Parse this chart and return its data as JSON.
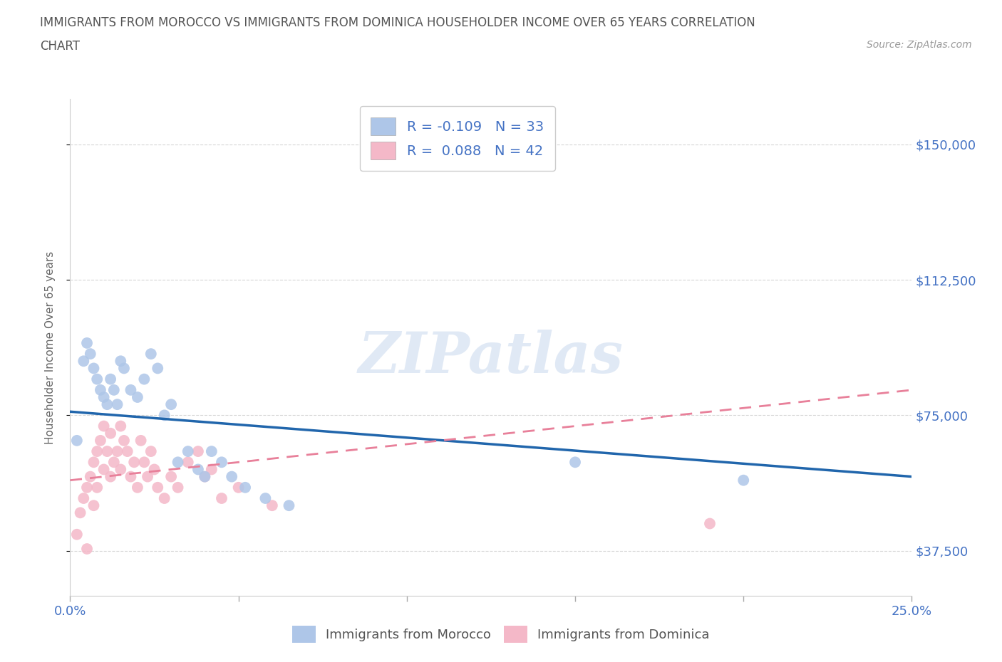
{
  "title_line1": "IMMIGRANTS FROM MOROCCO VS IMMIGRANTS FROM DOMINICA HOUSEHOLDER INCOME OVER 65 YEARS CORRELATION",
  "title_line2": "CHART",
  "source_text": "Source: ZipAtlas.com",
  "ylabel": "Householder Income Over 65 years",
  "xlabel": "",
  "xlim": [
    0.0,
    0.25
  ],
  "ylim": [
    25000,
    162500
  ],
  "yticks": [
    37500,
    75000,
    112500,
    150000
  ],
  "ytick_labels": [
    "$37,500",
    "$75,000",
    "$112,500",
    "$150,000"
  ],
  "xticks": [
    0.0,
    0.05,
    0.1,
    0.15,
    0.2,
    0.25
  ],
  "xtick_labels": [
    "0.0%",
    "",
    "",
    "",
    "",
    "25.0%"
  ],
  "morocco_color": "#aec6e8",
  "dominica_color": "#f4b8c8",
  "morocco_line_color": "#2166ac",
  "dominica_line_color": "#e8809a",
  "R_morocco": -0.109,
  "N_morocco": 33,
  "R_dominica": 0.088,
  "N_dominica": 42,
  "legend_label_morocco": "Immigrants from Morocco",
  "legend_label_dominica": "Immigrants from Dominica",
  "watermark": "ZIPatlas",
  "morocco_x": [
    0.002,
    0.004,
    0.005,
    0.006,
    0.007,
    0.008,
    0.009,
    0.01,
    0.011,
    0.012,
    0.013,
    0.014,
    0.015,
    0.016,
    0.018,
    0.02,
    0.022,
    0.024,
    0.026,
    0.028,
    0.03,
    0.032,
    0.035,
    0.038,
    0.04,
    0.042,
    0.045,
    0.048,
    0.052,
    0.058,
    0.065,
    0.15,
    0.2
  ],
  "morocco_y": [
    68000,
    90000,
    95000,
    92000,
    88000,
    85000,
    82000,
    80000,
    78000,
    85000,
    82000,
    78000,
    90000,
    88000,
    82000,
    80000,
    85000,
    92000,
    88000,
    75000,
    78000,
    62000,
    65000,
    60000,
    58000,
    65000,
    62000,
    58000,
    55000,
    52000,
    50000,
    62000,
    57000
  ],
  "dominica_x": [
    0.002,
    0.003,
    0.004,
    0.005,
    0.005,
    0.006,
    0.007,
    0.007,
    0.008,
    0.008,
    0.009,
    0.01,
    0.01,
    0.011,
    0.012,
    0.012,
    0.013,
    0.014,
    0.015,
    0.015,
    0.016,
    0.017,
    0.018,
    0.019,
    0.02,
    0.021,
    0.022,
    0.023,
    0.024,
    0.025,
    0.026,
    0.028,
    0.03,
    0.032,
    0.035,
    0.038,
    0.04,
    0.042,
    0.045,
    0.05,
    0.06,
    0.19
  ],
  "dominica_y": [
    42000,
    48000,
    52000,
    55000,
    38000,
    58000,
    62000,
    50000,
    65000,
    55000,
    68000,
    72000,
    60000,
    65000,
    70000,
    58000,
    62000,
    65000,
    60000,
    72000,
    68000,
    65000,
    58000,
    62000,
    55000,
    68000,
    62000,
    58000,
    65000,
    60000,
    55000,
    52000,
    58000,
    55000,
    62000,
    65000,
    58000,
    60000,
    52000,
    55000,
    50000,
    45000
  ],
  "morocco_line_x": [
    0.0,
    0.25
  ],
  "morocco_line_y": [
    76000,
    58000
  ],
  "dominica_line_x": [
    0.0,
    0.25
  ],
  "dominica_line_y": [
    57000,
    82000
  ],
  "grid_color": "#cccccc",
  "title_color": "#555555",
  "tick_label_color": "#4472c4",
  "background_color": "#ffffff"
}
